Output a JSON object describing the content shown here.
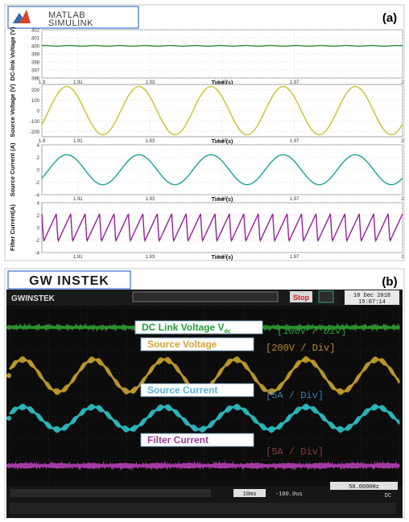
{
  "panel_a": {
    "label": "(a)",
    "logo_text": "MATLAB SIMULINK",
    "charts": [
      {
        "type": "line",
        "ylabel": "DC-link Voltage (V)",
        "xlabel": "Time (s)",
        "yticks": [
          "402",
          "401",
          "400",
          "399",
          "398",
          "397",
          "396"
        ],
        "ylim": [
          396,
          402
        ],
        "xticks": [
          "1.9",
          "1.91",
          "1.93",
          "1.95",
          "1.97",
          "2"
        ],
        "xlim": [
          1.9,
          2.0
        ],
        "series": [
          {
            "kind": "const",
            "value": 400,
            "color": "#2e8b3a"
          }
        ]
      },
      {
        "type": "line",
        "ylabel": "Source Voltage (V)",
        "xlabel": "Time (s)",
        "yticks": [
          "200",
          "100",
          "0",
          "-100",
          "-200"
        ],
        "ylim": [
          -250,
          250
        ],
        "xticks": [
          "1.9",
          "1.91",
          "1.93",
          "1.95",
          "1.97",
          "2"
        ],
        "xlim": [
          1.9,
          2.0
        ],
        "series": [
          {
            "kind": "sine",
            "amplitude": 230,
            "frequency_hz": 50,
            "color": "#c8c22a"
          }
        ]
      },
      {
        "type": "line",
        "ylabel": "Source Current (A)",
        "xlabel": "Time (s)",
        "yticks": [
          "4",
          "2",
          "0",
          "-2",
          "-4"
        ],
        "ylim": [
          -4,
          4
        ],
        "xticks": [
          "1.91",
          "1.93",
          "1.95",
          "1.97",
          "2"
        ],
        "xlim": [
          1.9,
          2.0
        ],
        "series": [
          {
            "kind": "sine",
            "amplitude": 2.4,
            "frequency_hz": 50,
            "color": "#1e9e9c"
          }
        ]
      },
      {
        "type": "line",
        "ylabel": "Filter Current(A)",
        "xlabel": "Time (s)",
        "yticks": [
          "4",
          "2",
          "0",
          "-2",
          "-4"
        ],
        "ylim": [
          -4,
          4
        ],
        "xticks": [
          "1.91",
          "1.93",
          "1.95",
          "1.97",
          "2"
        ],
        "xlim": [
          1.9,
          2.0
        ],
        "series": [
          {
            "kind": "sawtooth",
            "amplitude": 2.2,
            "frequency_hz": 250,
            "color": "#9a1c9a"
          }
        ]
      }
    ]
  },
  "panel_b": {
    "label": "(b)",
    "logo_text": "GW INSTEK",
    "scope_brand": "GWINSTEK",
    "status": "Stop",
    "datetime": "10 Dec 2018 15:07:14",
    "traces": [
      {
        "label": "DC Link Voltage V",
        "subscript": "dc",
        "scale": "[100V / Div]",
        "label_color": "#1f9f3a",
        "scale_color": "#1f9f3a",
        "color": "#2f8f2f"
      },
      {
        "label": "Source Voltage",
        "scale": "[200V / Div]",
        "label_color": "#d9a13a",
        "scale_color": "#b48a2a",
        "color": "#b8962a"
      },
      {
        "label": "Source Current",
        "scale": "[5A / Div]",
        "label_color": "#5aaed8",
        "scale_color": "#3a7bb0",
        "color": "#2bb3b8"
      },
      {
        "label": "Filter Current",
        "scale": "[5A / Div]",
        "label_color": "#9a3a9a",
        "scale_color": "#8a3a3a",
        "color": "#a43aa4"
      }
    ],
    "bottom_bar": {
      "timebase": "10ms",
      "trigger_pos": "-100.0us",
      "frequency": "50.0000Hz",
      "coupling": "DC"
    }
  }
}
